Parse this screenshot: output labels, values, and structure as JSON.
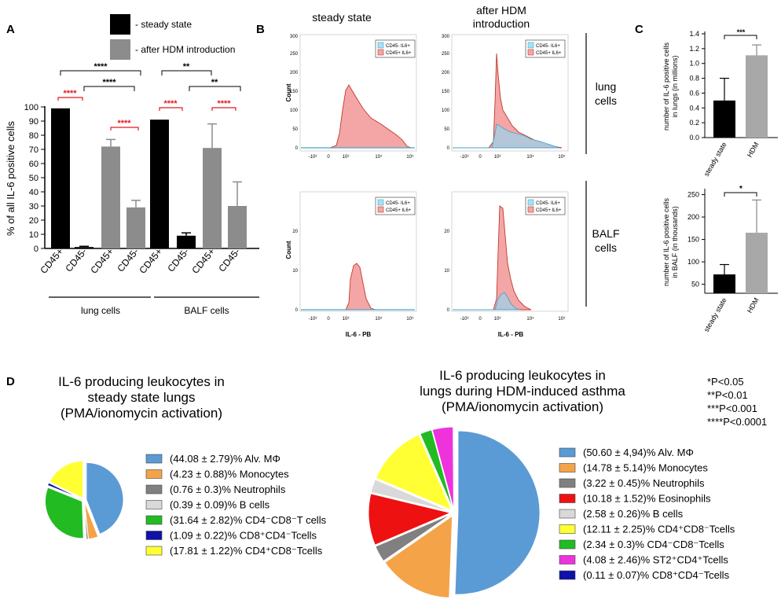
{
  "colors": {
    "black": "#000000",
    "gray": "#8c8c8c",
    "red": "#e41a1c",
    "salmon": "#f4a6a6",
    "histRed": "#c0392b",
    "blueFill": "#a9cbe0",
    "blueLine": "#4aa3c7",
    "lightGray": "#a8a8a8"
  },
  "panel_labels": {
    "a": "A",
    "b": "B",
    "c": "C",
    "d": "D"
  },
  "panelA": {
    "legend": [
      {
        "label": "- steady state",
        "color": "#000000"
      },
      {
        "label": "- after HDM introduction",
        "color": "#8c8c8c"
      }
    ],
    "ylabel": "% of all IL-6 positive cells",
    "yticks": [
      "0",
      "10",
      "20",
      "30",
      "40",
      "50",
      "60",
      "70",
      "80",
      "90",
      "100"
    ],
    "groups": {
      "lung": "lung cells",
      "balf": "BALF cells"
    },
    "sig": {
      "a": "****",
      "b": "****",
      "c": "****",
      "d": "****",
      "e": "****",
      "f": "**",
      "g": "**",
      "h": "****"
    }
  },
  "panelB": {
    "col_titles": {
      "steady": "steady state",
      "hdm_l1": "after HDM",
      "hdm_l2": "introduction"
    },
    "row_labels": {
      "lung_l1": "lung",
      "lung_l2": "cells",
      "balf_l1": "BALF",
      "balf_l2": "cells"
    },
    "legend": {
      "neg": "CD45- IL6+",
      "pos": "CD45+ IL6+"
    },
    "ylabel": "Count",
    "xlabel": "IL-6 - PB",
    "xticks": {
      "m3": "-10³",
      "z": "0",
      "p3": "10³",
      "p4": "10⁴",
      "p5": "10⁵"
    },
    "yticks_top": {
      "a": "0",
      "b": "50",
      "c": "100",
      "d": "150",
      "e": "200",
      "f": "250",
      "g": "300"
    },
    "yticks_bot": {
      "a": "0",
      "b": "10",
      "c": "20"
    }
  },
  "panelC": {
    "top": {
      "ylabel_l1": "number of IL-6 positive cells",
      "ylabel_l2": "in lungs (in millions)",
      "yticks": [
        "0.0",
        "0.2",
        "0.4",
        "0.6",
        "0.8",
        "1.0",
        "1.2",
        "1.4"
      ],
      "sig": "***",
      "cats": [
        "steady state",
        "HDM"
      ]
    },
    "bottom": {
      "ylabel_l1": "number of IL-6 positive cells",
      "ylabel_l2": "in BALF (in thousands)",
      "yticks": [
        "50",
        "100",
        "150",
        "200",
        "250"
      ],
      "sig": "*",
      "cats": [
        "steady state",
        "HDM"
      ]
    }
  },
  "panelD": {
    "left": {
      "title": [
        "IL-6 producing leukocytes in",
        "steady state lungs",
        "(PMA/ionomycin activation)"
      ]
    },
    "right": {
      "title": [
        "IL-6 producing leukocytes in",
        "lungs during HDM-induced asthma",
        "(PMA/ionomycin activation)"
      ]
    }
  },
  "pvals": [
    "*P<0.05",
    "**P<0.01",
    "***P<0.001",
    "****P<0.0001"
  ],
  "chart_data": [
    {
      "type": "bar",
      "title": "A",
      "ylabel": "% of all IL-6 positive cells",
      "ylim": [
        0,
        100
      ],
      "categories": [
        "CD45+",
        "CD45-",
        "CD45+",
        "CD45-",
        "CD45+",
        "CD45-",
        "CD45+",
        "CD45-"
      ],
      "groups": [
        "lung cells",
        "lung cells",
        "lung cells",
        "lung cells",
        "BALF cells",
        "BALF cells",
        "BALF cells",
        "BALF cells"
      ],
      "series_of_bar": [
        "steady state",
        "steady state",
        "after HDM introduction",
        "after HDM introduction",
        "steady state",
        "steady state",
        "after HDM introduction",
        "after HDM introduction"
      ],
      "values": [
        99,
        1,
        72,
        29,
        91,
        9,
        71,
        30
      ],
      "errors": [
        0,
        0.5,
        5,
        5,
        0,
        2,
        17,
        17
      ]
    },
    {
      "type": "bar",
      "title": "C top",
      "ylabel": "number of IL-6 positive cells in lungs (in millions)",
      "ylim": [
        0,
        1.4
      ],
      "categories": [
        "steady state",
        "HDM"
      ],
      "values": [
        0.5,
        1.11
      ],
      "errors": [
        0.3,
        0.14
      ]
    },
    {
      "type": "bar",
      "title": "C bottom",
      "ylabel": "number of IL-6 positive cells in BALF (in thousands)",
      "ylim": [
        50,
        260
      ],
      "categories": [
        "steady state",
        "HDM"
      ],
      "values": [
        72,
        165
      ],
      "errors": [
        22,
        73
      ]
    },
    {
      "type": "pie",
      "title": "IL-6 producing leukocytes in steady state lungs (PMA/ionomycin activation)",
      "slices": [
        {
          "value": 44.08,
          "color": "#5b9bd5",
          "label": "(44.08 ± 2.79)%  Alv. MΦ"
        },
        {
          "value": 4.23,
          "color": "#f4a349",
          "label": "(4.23 ± 0.88)%  Monocytes"
        },
        {
          "value": 0.76,
          "color": "#808080",
          "label": "(0.76 ± 0.3)%  Neutrophils"
        },
        {
          "value": 0.39,
          "color": "#d9d9d9",
          "label": "(0.39 ± 0.09)%  B cells"
        },
        {
          "value": 31.64,
          "color": "#22bb22",
          "label": "(31.64 ± 2.82)%  CD4⁻CD8⁻T cells"
        },
        {
          "value": 1.09,
          "color": "#1010aa",
          "label": "(1.09 ± 0.22)%  CD8⁺CD4⁻Tcells"
        },
        {
          "value": 17.81,
          "color": "#ffff33",
          "label": "(17.81 ± 1.22)%  CD4⁺CD8⁻Tcells"
        }
      ]
    },
    {
      "type": "pie",
      "title": "IL-6 producing leukocytes in lungs during HDM-induced asthma (PMA/ionomycin activation)",
      "slices": [
        {
          "value": 50.6,
          "color": "#5b9bd5",
          "label": "(50.60 ± 4,94)%  Alv. MΦ"
        },
        {
          "value": 14.78,
          "color": "#f4a349",
          "label": "(14.78 ± 5.14)%  Monocytes"
        },
        {
          "value": 3.22,
          "color": "#808080",
          "label": "(3.22 ± 0.45)%  Neutrophils"
        },
        {
          "value": 10.18,
          "color": "#ee1111",
          "label": "(10.18 ± 1.52)%  Eosinophils"
        },
        {
          "value": 2.58,
          "color": "#d9d9d9",
          "label": "(2.58 ± 0.26)%  B cells"
        },
        {
          "value": 12.11,
          "color": "#ffff33",
          "label": "(12.11 ± 2.25)%  CD4⁺CD8⁻Tcells"
        },
        {
          "value": 2.34,
          "color": "#22bb22",
          "label": "(2.34 ± 0.3)%  CD4⁻CD8⁻Tcells"
        },
        {
          "value": 4.08,
          "color": "#ee33dd",
          "label": "(4.08 ± 2.46)%  ST2⁺CD4⁺Tcells"
        },
        {
          "value": 0.11,
          "color": "#1010aa",
          "label": "(0.11 ± 0.07)%  CD8⁺CD4⁻Tcells"
        }
      ]
    }
  ]
}
